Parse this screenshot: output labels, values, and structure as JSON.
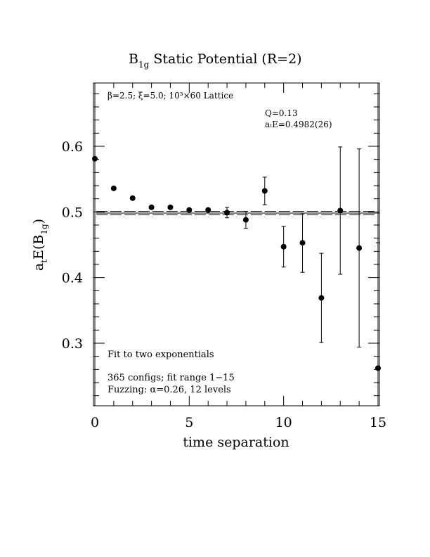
{
  "chart_data": {
    "type": "scatter",
    "title_main": "B",
    "title_sub": "1g",
    "title_rest": " Static Potential (R=2)",
    "xlabel": "time separation",
    "ylabel_main": "a",
    "ylabel_sub1": "t",
    "ylabel_mid": "E(B",
    "ylabel_sub2": "1g",
    "ylabel_end": ")",
    "xlim": [
      0,
      15
    ],
    "ylim": [
      0.2,
      0.7
    ],
    "xticks": [
      "0",
      "5",
      "10",
      "15"
    ],
    "yticks": [
      "0.3",
      "0.4",
      "0.5",
      "0.6"
    ],
    "annotation_lattice": "β=2.5; ξ=5.0; 10³×60 Lattice",
    "annotation_q": "Q=0.13",
    "annotation_energy": "aₜE=0.4982(26)",
    "annotation_fit": "Fit to two exponentials",
    "annotation_configs": "365 configs; fit range 1−15",
    "annotation_fuzzing": "Fuzzing: α=0.26, 12 levels",
    "fit": {
      "value": 0.4982,
      "error": 0.0026,
      "x_start": 1,
      "x_end": 15
    },
    "points": [
      {
        "x": 0,
        "y": 0.581,
        "err": 0.001
      },
      {
        "x": 1,
        "y": 0.536,
        "err": 0.001
      },
      {
        "x": 2,
        "y": 0.521,
        "err": 0.002
      },
      {
        "x": 3,
        "y": 0.507,
        "err": 0.002
      },
      {
        "x": 4,
        "y": 0.507,
        "err": 0.003
      },
      {
        "x": 5,
        "y": 0.503,
        "err": 0.003
      },
      {
        "x": 6,
        "y": 0.503,
        "err": 0.004
      },
      {
        "x": 7,
        "y": 0.499,
        "err": 0.008
      },
      {
        "x": 8,
        "y": 0.488,
        "err": 0.013
      },
      {
        "x": 9,
        "y": 0.532,
        "err": 0.021
      },
      {
        "x": 10,
        "y": 0.447,
        "err": 0.031
      },
      {
        "x": 11,
        "y": 0.453,
        "err": 0.045
      },
      {
        "x": 12,
        "y": 0.369,
        "err": 0.068
      },
      {
        "x": 13,
        "y": 0.502,
        "err": 0.097
      },
      {
        "x": 14,
        "y": 0.445,
        "err": 0.151
      },
      {
        "x": 15,
        "y": 0.262,
        "err": 0.191
      }
    ]
  }
}
